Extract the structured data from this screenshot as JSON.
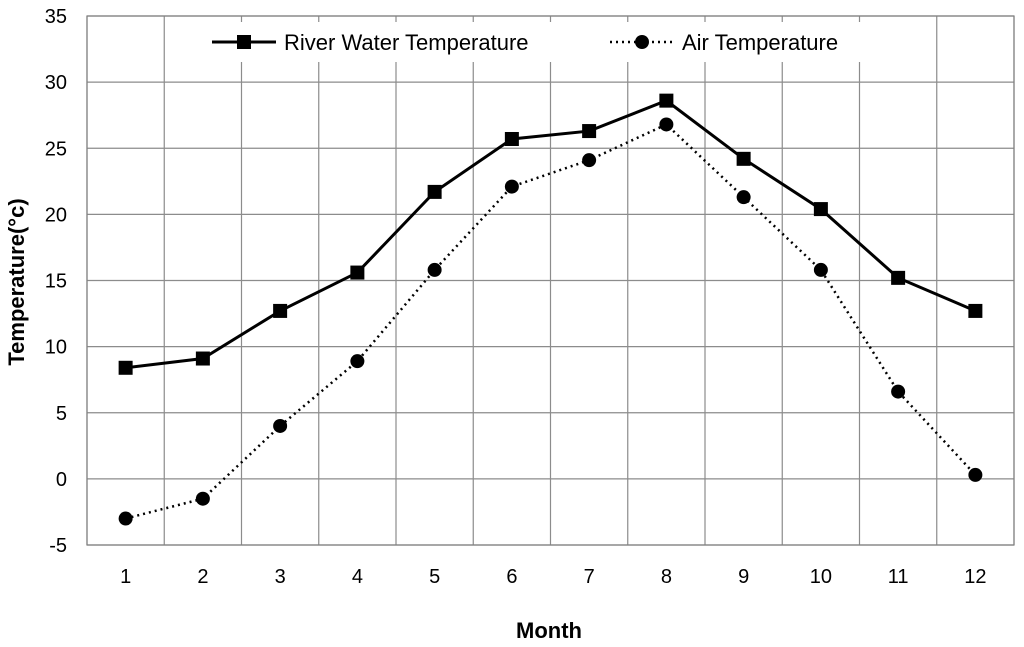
{
  "chart_data": {
    "type": "line",
    "title": "",
    "xlabel": "Month",
    "ylabel": "Temperature(°c)",
    "categories": [
      "1",
      "2",
      "3",
      "4",
      "5",
      "6",
      "7",
      "8",
      "9",
      "10",
      "11",
      "12"
    ],
    "ylim": [
      -5,
      35
    ],
    "yticks": [
      -5,
      0,
      5,
      10,
      15,
      20,
      25,
      30,
      35
    ],
    "grid": true,
    "legend_position": "top",
    "series": [
      {
        "name": "River Water Temperature",
        "values": [
          8.4,
          9.1,
          12.7,
          15.6,
          21.7,
          25.7,
          26.3,
          28.6,
          24.2,
          20.4,
          15.2,
          12.7
        ],
        "marker": "square",
        "line_style": "solid",
        "color": "#000000"
      },
      {
        "name": "Air Temperature",
        "values": [
          -3.0,
          -1.5,
          4.0,
          8.9,
          15.8,
          22.1,
          24.1,
          26.8,
          21.3,
          15.8,
          6.6,
          0.3
        ],
        "marker": "circle",
        "line_style": "dotted",
        "color": "#000000"
      }
    ]
  }
}
